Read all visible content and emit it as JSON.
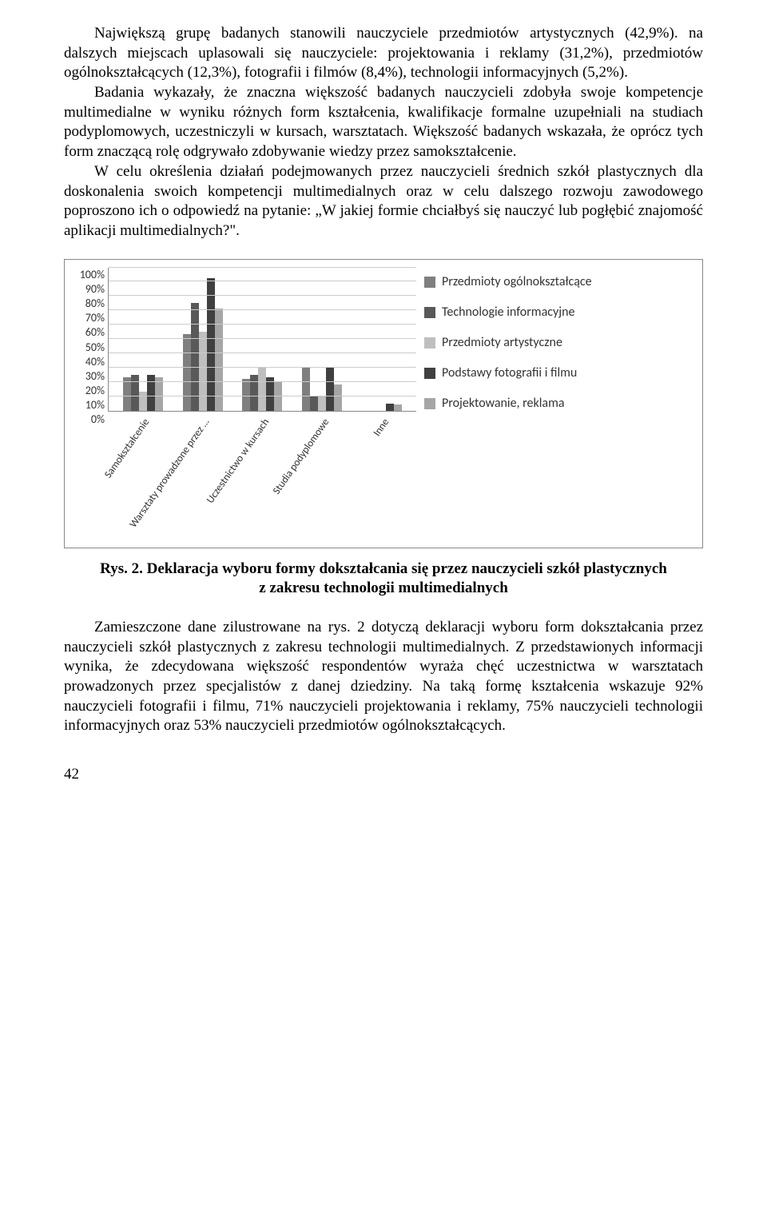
{
  "para1": "Największą grupę badanych stanowili nauczyciele przedmiotów artystycznych (42,9%). na dalszych miejscach uplasowali się nauczyciele: projektowania i reklamy (31,2%), przedmiotów ogólnokształcących (12,3%), fotografii i filmów (8,4%), technologii informacyjnych (5,2%).",
  "para2": "Badania wykazały, że znaczna większość badanych nauczycieli zdobyła swoje kompetencje multimedialne w wyniku różnych form kształcenia, kwalifikacje formalne uzupełniali na studiach podyplomowych, uczestniczyli w kursach, warsztatach. Większość badanych wskazała, że oprócz tych form znaczącą rolę odgrywało zdobywanie wiedzy przez samokształcenie.",
  "para3": "W celu określenia działań podejmowanych przez nauczycieli średnich szkół plastycznych dla doskonalenia swoich kompetencji multimedialnych oraz w celu dalszego rozwoju zawodowego poproszono ich o odpowiedź na pytanie: „W jakiej formie chciałbyś się nauczyć lub pogłębić znajomość aplikacji multimedialnych?\".",
  "chart": {
    "y_ticks": [
      "100%",
      "90%",
      "80%",
      "70%",
      "60%",
      "50%",
      "40%",
      "30%",
      "20%",
      "10%",
      "0%"
    ],
    "y_max": 100,
    "categories": [
      "Samokształcenie",
      "Warsztaty prowadzone przez …",
      "Uczestnictwo w kursach",
      "Studia podyplomowe",
      "Inne"
    ],
    "series": [
      {
        "name": "Przedmioty ogólnokształcące",
        "color": "#7f7f7f",
        "values": [
          23,
          53,
          22,
          30,
          0
        ]
      },
      {
        "name": "Technologie informacyjne",
        "color": "#595959",
        "values": [
          25,
          75,
          25,
          10,
          0
        ]
      },
      {
        "name": "Przedmioty artystyczne",
        "color": "#bfbfbf",
        "values": [
          13,
          55,
          30,
          10,
          0
        ]
      },
      {
        "name": "Podstawy fotografii i filmu",
        "color": "#404040",
        "values": [
          25,
          92,
          23,
          30,
          5
        ]
      },
      {
        "name": "Projektowanie, reklama",
        "color": "#a6a6a6",
        "values": [
          23,
          71,
          20,
          18,
          4
        ]
      }
    ],
    "grid_color": "#cccccc",
    "axis_color": "#888888",
    "background": "#ffffff",
    "font_family": "Calibri",
    "label_fontsize": 14
  },
  "caption": "Rys. 2. Deklaracja wyboru formy dokształcania się przez nauczycieli szkół plastycznych z zakresu technologii multimedialnych",
  "para4": "Zamieszczone dane zilustrowane na rys. 2 dotyczą deklaracji wyboru form dokształcania przez nauczycieli szkół plastycznych z zakresu technologii multimedialnych. Z przedstawionych informacji wynika, że zdecydowana większość respondentów wyraża chęć uczestnictwa w warsztatach prowadzonych przez specjalistów z danej dziedziny. Na taką formę kształcenia wskazuje 92% nauczycieli fotografii i filmu, 71% nauczycieli projektowania i reklamy, 75% nauczycieli technologii informacyjnych oraz 53% nauczycieli przedmiotów ogólnokształcących.",
  "page_number": "42"
}
